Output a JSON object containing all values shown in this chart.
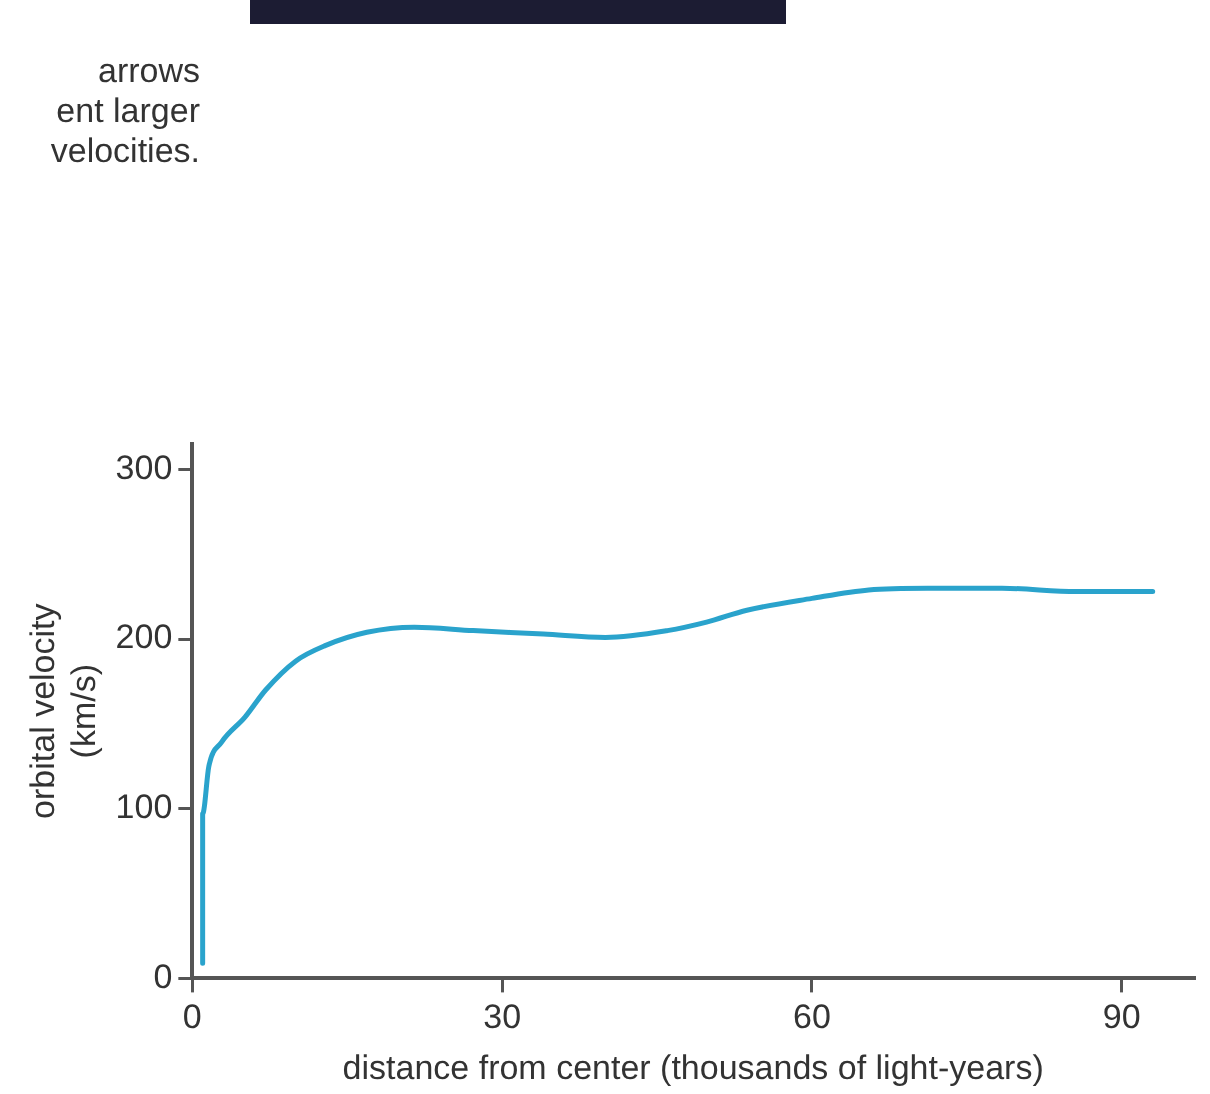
{
  "chart_data": {
    "type": "line",
    "xlabel": "distance from center (thousands of light-years)",
    "ylabel": "orbital velocity\n(km/s)",
    "annotations": [
      "arrows",
      "ent larger",
      "velocities."
    ],
    "xlim": [
      0,
      97
    ],
    "ylim": [
      0,
      315
    ],
    "xticks": [
      0,
      30,
      60,
      90
    ],
    "yticks": [
      0,
      100,
      200,
      300
    ],
    "marker": "none",
    "series": [
      {
        "color": "#2aa3cc",
        "x": [
          1,
          1,
          1.6,
          2.8,
          5.1,
          7.1,
          10,
          12.8,
          16.9,
          21.5,
          27.2,
          34,
          40,
          46,
          49.8,
          53.7,
          60,
          65.5,
          71.2,
          78.4,
          85.6,
          93
        ],
        "values": [
          9,
          97,
          125,
          139,
          154,
          170,
          187,
          196,
          204,
          207,
          205,
          203,
          201,
          205,
          210,
          217,
          224,
          229,
          230,
          230,
          228,
          228
        ]
      }
    ]
  }
}
